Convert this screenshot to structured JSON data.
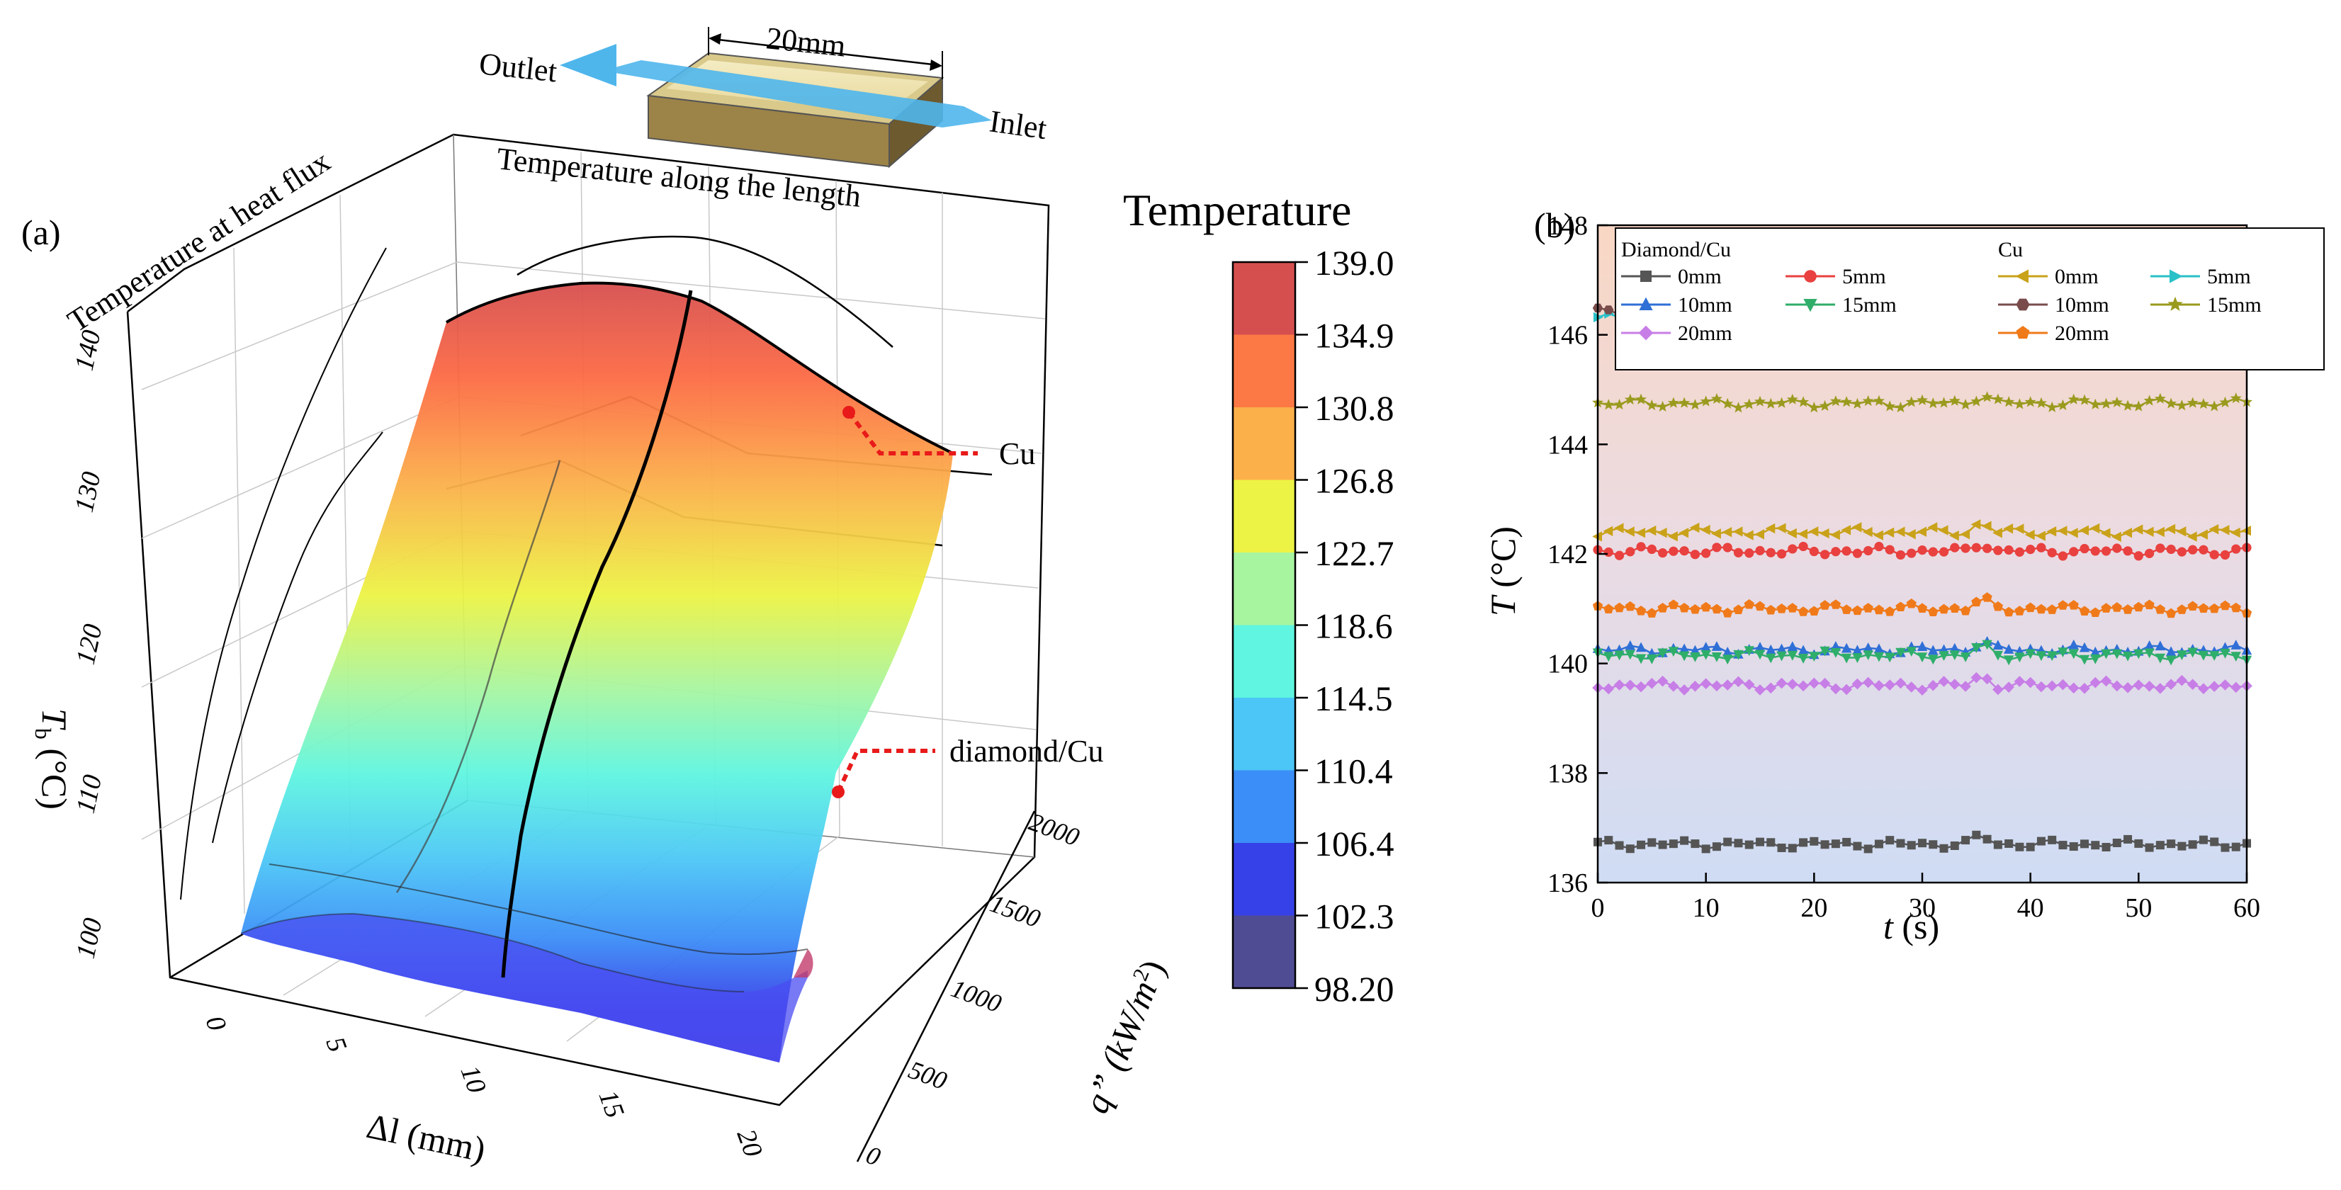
{
  "panel_a": {
    "label": "(a)",
    "schematic": {
      "outlet": "Outlet",
      "inlet": "Inlet",
      "width": "20mm"
    },
    "wall_left_title": "Temperature at heat flux",
    "wall_back_title": "Temperature along the length",
    "annotations": {
      "cu": "Cu",
      "diamond": "diamond/Cu"
    },
    "z_axis": {
      "label_main": "T",
      "label_sub": "b",
      "label_unit": " (°C)",
      "ticks": [
        "100",
        "110",
        "120",
        "130",
        "140"
      ]
    },
    "x_axis": {
      "label": "Δl (mm)",
      "ticks": [
        "0",
        "5",
        "10",
        "15",
        "20"
      ]
    },
    "y_axis": {
      "label_main": "q” (kW/m",
      "label_sup": "2",
      "label_end": ")",
      "ticks": [
        "0",
        "500",
        "1000",
        "1500",
        "2000"
      ]
    },
    "colorbar": {
      "title": "Temperature",
      "values": [
        "139.0",
        "134.9",
        "130.8",
        "126.8",
        "122.7",
        "118.6",
        "114.5",
        "110.4",
        "106.4",
        "102.3",
        "98.20"
      ],
      "colors": [
        "#d64f4f",
        "#fc7844",
        "#fbb04a",
        "#ecf344",
        "#a8f5a0",
        "#5ff5e0",
        "#4cc6f6",
        "#3b8ef7",
        "#3741e8",
        "#504c94"
      ]
    }
  },
  "chart_data": [
    {
      "type": "surface",
      "title": "Temperature along the length / Temperature at heat flux",
      "xlabel": "Δl (mm)",
      "ylabel": "q” (kW/m2)",
      "zlabel": "Tb (°C)",
      "x": [
        0,
        5,
        10,
        15,
        20
      ],
      "y": [
        0,
        500,
        1000,
        1500,
        2000
      ],
      "zlim": [
        98.2,
        139.0
      ],
      "series": [
        {
          "name": "Cu",
          "values": [
            136.0,
            138.5,
            139.0,
            137.5,
            135.0
          ]
        },
        {
          "name": "diamond/Cu",
          "values": [
            130.0,
            133.0,
            132.0,
            131.0,
            130.5
          ]
        }
      ]
    },
    {
      "type": "line",
      "title": "(b)",
      "xlabel": "t (s)",
      "ylabel": "T (°C)",
      "xlim": [
        0,
        60
      ],
      "ylim": [
        136,
        148
      ],
      "x_ticks": [
        "0",
        "10",
        "20",
        "30",
        "40",
        "50",
        "60"
      ],
      "y_ticks": [
        "136",
        "138",
        "140",
        "142",
        "144",
        "146",
        "148"
      ],
      "legend_groups": [
        "Diamond/Cu",
        "Cu"
      ],
      "series": [
        {
          "name": "0mm",
          "group": "Diamond/Cu",
          "marker": "square",
          "color": "#555555",
          "level": 136.7
        },
        {
          "name": "5mm",
          "group": "Diamond/Cu",
          "marker": "circle",
          "color": "#e8413f",
          "level": 142.05
        },
        {
          "name": "10mm",
          "group": "Diamond/Cu",
          "marker": "tri-up",
          "color": "#2f6fd6",
          "level": 140.25
        },
        {
          "name": "15mm",
          "group": "Diamond/Cu",
          "marker": "tri-down",
          "color": "#2fae6a",
          "level": 140.15
        },
        {
          "name": "20mm",
          "group": "Diamond/Cu",
          "marker": "diamond",
          "color": "#c77ee6",
          "level": 139.6
        },
        {
          "name": "0mm",
          "group": "Cu",
          "marker": "tri-left",
          "color": "#c9a21a",
          "level": 142.4
        },
        {
          "name": "5mm",
          "group": "Cu",
          "marker": "tri-right",
          "color": "#28c1c8",
          "level": 146.3
        },
        {
          "name": "10mm",
          "group": "Cu",
          "marker": "hexagon",
          "color": "#7a4b4b",
          "level": 146.45
        },
        {
          "name": "15mm",
          "group": "Cu",
          "marker": "star",
          "color": "#9a9a1e",
          "level": 144.75
        },
        {
          "name": "20mm",
          "group": "Cu",
          "marker": "pentagon",
          "color": "#f07a1a",
          "level": 141.0
        }
      ]
    }
  ]
}
